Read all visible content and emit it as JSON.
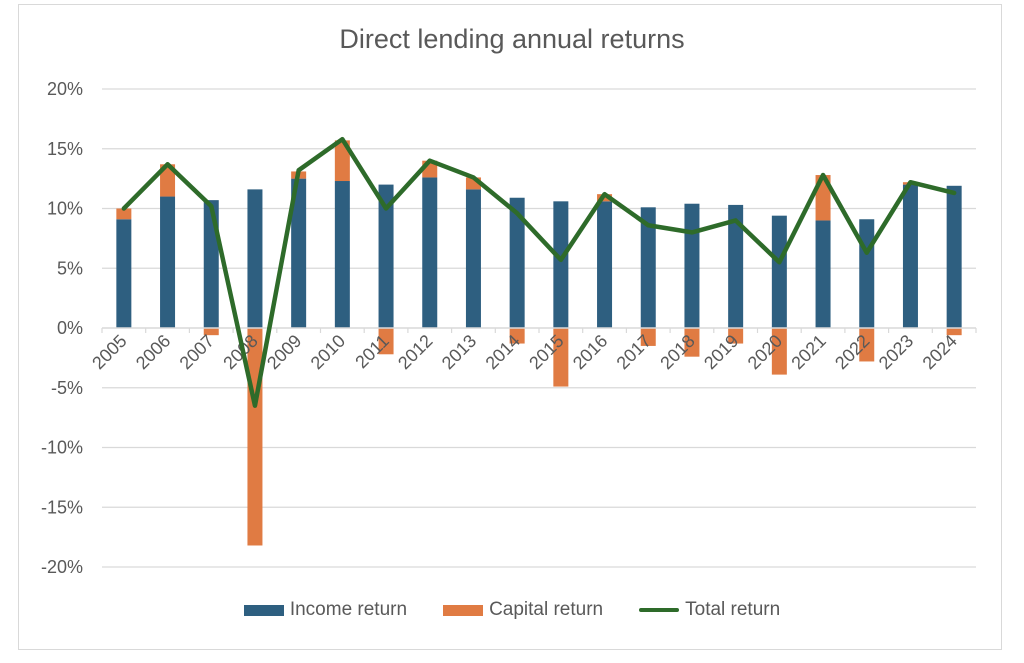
{
  "chart_data": {
    "type": "bar",
    "subtype": "stacked bar with line overlay",
    "title": "Direct lending annual returns",
    "xlabel": "",
    "ylabel": "",
    "ylim": [
      -20,
      20
    ],
    "yticks": [
      "20%",
      "15%",
      "10%",
      "5%",
      "0%",
      "-5%",
      "-10%",
      "-15%",
      "-20%"
    ],
    "ytick_values": [
      20,
      15,
      10,
      5,
      0,
      -5,
      -10,
      -15,
      -20
    ],
    "grid": true,
    "legend_position": "bottom",
    "categories": [
      "2005",
      "2006",
      "2007",
      "2008",
      "2009",
      "2010",
      "2011",
      "2012",
      "2013",
      "2014",
      "2015",
      "2016",
      "2017",
      "2018",
      "2019",
      "2020",
      "2021",
      "2022",
      "2023",
      "2024"
    ],
    "series": [
      {
        "name": "Income return",
        "type": "bar",
        "color": "#2e5f80",
        "values": [
          9.1,
          11.0,
          10.7,
          11.6,
          12.5,
          12.3,
          12.0,
          12.6,
          11.6,
          10.9,
          10.6,
          10.6,
          10.1,
          10.4,
          10.3,
          9.4,
          9.0,
          9.1,
          12.0,
          11.9
        ]
      },
      {
        "name": "Capital return",
        "type": "bar",
        "color": "#e07b43",
        "values": [
          0.9,
          2.7,
          -0.6,
          -18.2,
          0.6,
          3.4,
          -2.2,
          1.4,
          1.0,
          -1.3,
          -4.9,
          0.6,
          -1.5,
          -2.4,
          -1.3,
          -3.9,
          3.8,
          -2.8,
          0.2,
          -0.6
        ]
      },
      {
        "name": "Total return",
        "type": "line",
        "color": "#2e6b2a",
        "values": [
          10.0,
          13.7,
          10.2,
          -6.5,
          13.2,
          15.8,
          10.0,
          14.0,
          12.6,
          9.6,
          5.7,
          11.2,
          8.6,
          8.0,
          9.0,
          5.5,
          12.8,
          6.3,
          12.2,
          11.3
        ]
      }
    ]
  },
  "legend": {
    "income_label": "Income return",
    "capital_label": "Capital return",
    "total_label": "Total return"
  }
}
